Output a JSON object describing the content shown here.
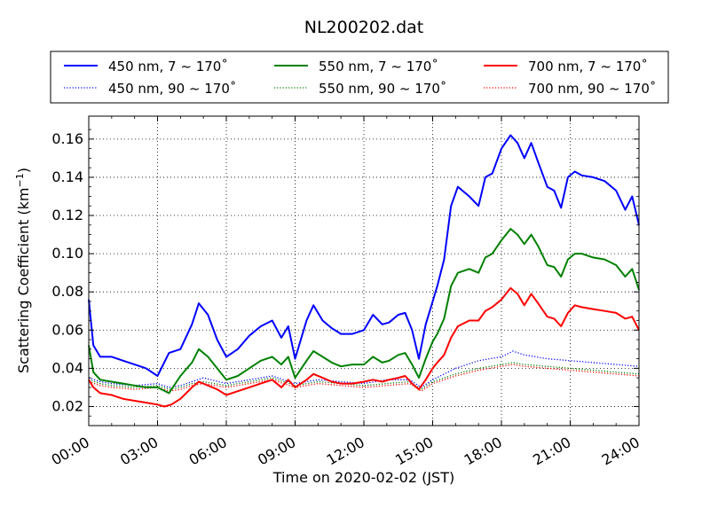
{
  "chart_data": {
    "type": "line",
    "title": "NL200202.dat",
    "xlabel": "Time on 2020-02-02 (JST)",
    "ylabel_main": "Scattering Coefficient (km",
    "ylabel_sup": "−1",
    "ylabel_close": ")",
    "xlim": [
      0,
      24
    ],
    "ylim": [
      0.01,
      0.172
    ],
    "x_ticks": [
      0,
      3,
      6,
      9,
      12,
      15,
      18,
      21,
      24
    ],
    "x_tick_labels": [
      "00:00",
      "03:00",
      "06:00",
      "09:00",
      "12:00",
      "15:00",
      "18:00",
      "21:00",
      "24:00"
    ],
    "y_ticks": [
      0.02,
      0.04,
      0.06,
      0.08,
      0.1,
      0.12,
      0.14,
      0.16
    ],
    "y_tick_labels": [
      "0.02",
      "0.04",
      "0.06",
      "0.08",
      "0.10",
      "0.12",
      "0.14",
      "0.16"
    ],
    "grid": true,
    "legend_position": "top, above plot (3 columns)",
    "series": [
      {
        "name": "450 nm, 7 ~ 170˚",
        "color": "#0000ff",
        "style": "solid",
        "x": [
          0,
          0.2,
          0.5,
          1,
          1.5,
          2,
          2.5,
          3,
          3.5,
          4,
          4.5,
          4.8,
          5.2,
          5.6,
          6,
          6.5,
          7,
          7.5,
          8,
          8.4,
          8.7,
          9,
          9.5,
          9.8,
          10.2,
          10.6,
          11,
          11.5,
          12,
          12.4,
          12.8,
          13.1,
          13.5,
          13.8,
          14.1,
          14.4,
          14.7,
          15,
          15.2,
          15.5,
          15.8,
          16.1,
          16.6,
          17,
          17.3,
          17.6,
          18,
          18.4,
          18.7,
          19,
          19.3,
          19.6,
          20,
          20.3,
          20.6,
          20.9,
          21.2,
          21.5,
          22,
          22.5,
          23,
          23.4,
          23.7,
          24
        ],
        "y": [
          0.076,
          0.052,
          0.046,
          0.046,
          0.044,
          0.042,
          0.04,
          0.036,
          0.048,
          0.05,
          0.063,
          0.074,
          0.068,
          0.055,
          0.046,
          0.05,
          0.057,
          0.062,
          0.065,
          0.056,
          0.062,
          0.045,
          0.065,
          0.073,
          0.065,
          0.061,
          0.058,
          0.058,
          0.06,
          0.068,
          0.063,
          0.064,
          0.068,
          0.069,
          0.06,
          0.045,
          0.063,
          0.075,
          0.083,
          0.097,
          0.125,
          0.135,
          0.13,
          0.125,
          0.14,
          0.142,
          0.155,
          0.162,
          0.158,
          0.15,
          0.158,
          0.148,
          0.135,
          0.133,
          0.124,
          0.14,
          0.143,
          0.141,
          0.14,
          0.138,
          0.133,
          0.123,
          0.13,
          0.115
        ]
      },
      {
        "name": "450 nm, 90 ~ 170˚",
        "color": "#0000ff",
        "style": "dotted",
        "x": [
          0,
          0.5,
          1,
          2,
          3,
          3.5,
          4,
          4.5,
          5,
          6,
          7,
          8,
          9,
          10,
          11,
          12,
          13,
          14,
          14.5,
          15,
          16,
          17,
          18,
          18.5,
          19,
          20,
          21,
          22,
          23,
          24
        ],
        "y": [
          0.035,
          0.033,
          0.032,
          0.031,
          0.032,
          0.03,
          0.031,
          0.033,
          0.035,
          0.032,
          0.034,
          0.036,
          0.032,
          0.034,
          0.033,
          0.032,
          0.034,
          0.034,
          0.03,
          0.034,
          0.04,
          0.044,
          0.046,
          0.049,
          0.047,
          0.045,
          0.044,
          0.043,
          0.042,
          0.041
        ]
      },
      {
        "name": "550 nm, 7 ~ 170˚",
        "color": "#008000",
        "style": "solid",
        "x": [
          0,
          0.2,
          0.5,
          1,
          1.5,
          2,
          2.5,
          3,
          3.5,
          4,
          4.5,
          4.8,
          5.2,
          5.6,
          6,
          6.5,
          7,
          7.5,
          8,
          8.4,
          8.7,
          9,
          9.5,
          9.8,
          10.2,
          10.6,
          11,
          11.5,
          12,
          12.4,
          12.8,
          13.1,
          13.5,
          13.8,
          14.1,
          14.4,
          14.7,
          15,
          15.2,
          15.5,
          15.8,
          16.1,
          16.6,
          17,
          17.3,
          17.6,
          18,
          18.4,
          18.7,
          19,
          19.3,
          19.6,
          20,
          20.3,
          20.6,
          20.9,
          21.2,
          21.5,
          22,
          22.5,
          23,
          23.4,
          23.7,
          24
        ],
        "y": [
          0.052,
          0.038,
          0.034,
          0.033,
          0.032,
          0.031,
          0.03,
          0.03,
          0.027,
          0.036,
          0.043,
          0.05,
          0.046,
          0.04,
          0.034,
          0.036,
          0.04,
          0.044,
          0.046,
          0.042,
          0.046,
          0.035,
          0.044,
          0.049,
          0.046,
          0.043,
          0.041,
          0.042,
          0.042,
          0.046,
          0.043,
          0.044,
          0.047,
          0.048,
          0.042,
          0.035,
          0.045,
          0.054,
          0.058,
          0.066,
          0.083,
          0.09,
          0.092,
          0.09,
          0.098,
          0.1,
          0.107,
          0.113,
          0.11,
          0.105,
          0.11,
          0.104,
          0.094,
          0.093,
          0.088,
          0.097,
          0.1,
          0.1,
          0.098,
          0.097,
          0.094,
          0.088,
          0.092,
          0.081
        ]
      },
      {
        "name": "550 nm, 90 ~ 170˚",
        "color": "#008000",
        "style": "dotted",
        "x": [
          0,
          0.5,
          1,
          2,
          3,
          3.5,
          4,
          4.5,
          5,
          6,
          7,
          8,
          9,
          10,
          11,
          12,
          13,
          14,
          14.5,
          15,
          16,
          17,
          18,
          18.5,
          19,
          20,
          21,
          22,
          23,
          24
        ],
        "y": [
          0.034,
          0.032,
          0.031,
          0.03,
          0.031,
          0.029,
          0.03,
          0.032,
          0.033,
          0.031,
          0.033,
          0.035,
          0.031,
          0.033,
          0.032,
          0.031,
          0.032,
          0.033,
          0.029,
          0.033,
          0.037,
          0.04,
          0.042,
          0.043,
          0.042,
          0.041,
          0.04,
          0.039,
          0.038,
          0.037
        ]
      },
      {
        "name": "700 nm, 7 ~ 170˚",
        "color": "#ff0000",
        "style": "solid",
        "x": [
          0,
          0.2,
          0.5,
          1,
          1.5,
          2,
          2.5,
          3,
          3.3,
          3.6,
          4,
          4.5,
          4.8,
          5.2,
          5.6,
          6,
          6.5,
          7,
          7.5,
          8,
          8.4,
          8.7,
          9,
          9.5,
          9.8,
          10.2,
          10.6,
          11,
          11.5,
          12,
          12.4,
          12.8,
          13.1,
          13.5,
          13.8,
          14.1,
          14.4,
          14.7,
          15,
          15.2,
          15.5,
          15.8,
          16.1,
          16.6,
          17,
          17.3,
          17.6,
          18,
          18.4,
          18.7,
          19,
          19.3,
          19.6,
          20,
          20.3,
          20.6,
          20.9,
          21.2,
          21.5,
          22,
          22.5,
          23,
          23.4,
          23.7,
          24
        ],
        "y": [
          0.034,
          0.03,
          0.027,
          0.026,
          0.024,
          0.023,
          0.022,
          0.021,
          0.02,
          0.021,
          0.024,
          0.03,
          0.033,
          0.031,
          0.029,
          0.026,
          0.028,
          0.03,
          0.032,
          0.034,
          0.03,
          0.034,
          0.03,
          0.034,
          0.037,
          0.035,
          0.033,
          0.032,
          0.032,
          0.033,
          0.034,
          0.033,
          0.034,
          0.035,
          0.036,
          0.032,
          0.029,
          0.034,
          0.04,
          0.043,
          0.047,
          0.056,
          0.062,
          0.065,
          0.065,
          0.07,
          0.072,
          0.076,
          0.082,
          0.079,
          0.073,
          0.079,
          0.074,
          0.067,
          0.066,
          0.062,
          0.069,
          0.073,
          0.072,
          0.071,
          0.07,
          0.069,
          0.066,
          0.067,
          0.06
        ]
      },
      {
        "name": "700 nm, 90 ~ 170˚",
        "color": "#ff0000",
        "style": "dotted",
        "x": [
          0,
          0.5,
          1,
          2,
          3,
          3.5,
          4,
          4.5,
          5,
          6,
          7,
          8,
          9,
          10,
          11,
          12,
          13,
          14,
          14.5,
          15,
          16,
          17,
          18,
          18.5,
          19,
          20,
          21,
          22,
          23,
          24
        ],
        "y": [
          0.033,
          0.031,
          0.03,
          0.029,
          0.03,
          0.028,
          0.029,
          0.031,
          0.032,
          0.03,
          0.032,
          0.034,
          0.03,
          0.032,
          0.031,
          0.03,
          0.031,
          0.032,
          0.028,
          0.032,
          0.036,
          0.039,
          0.041,
          0.042,
          0.041,
          0.04,
          0.039,
          0.038,
          0.037,
          0.036
        ]
      }
    ]
  }
}
